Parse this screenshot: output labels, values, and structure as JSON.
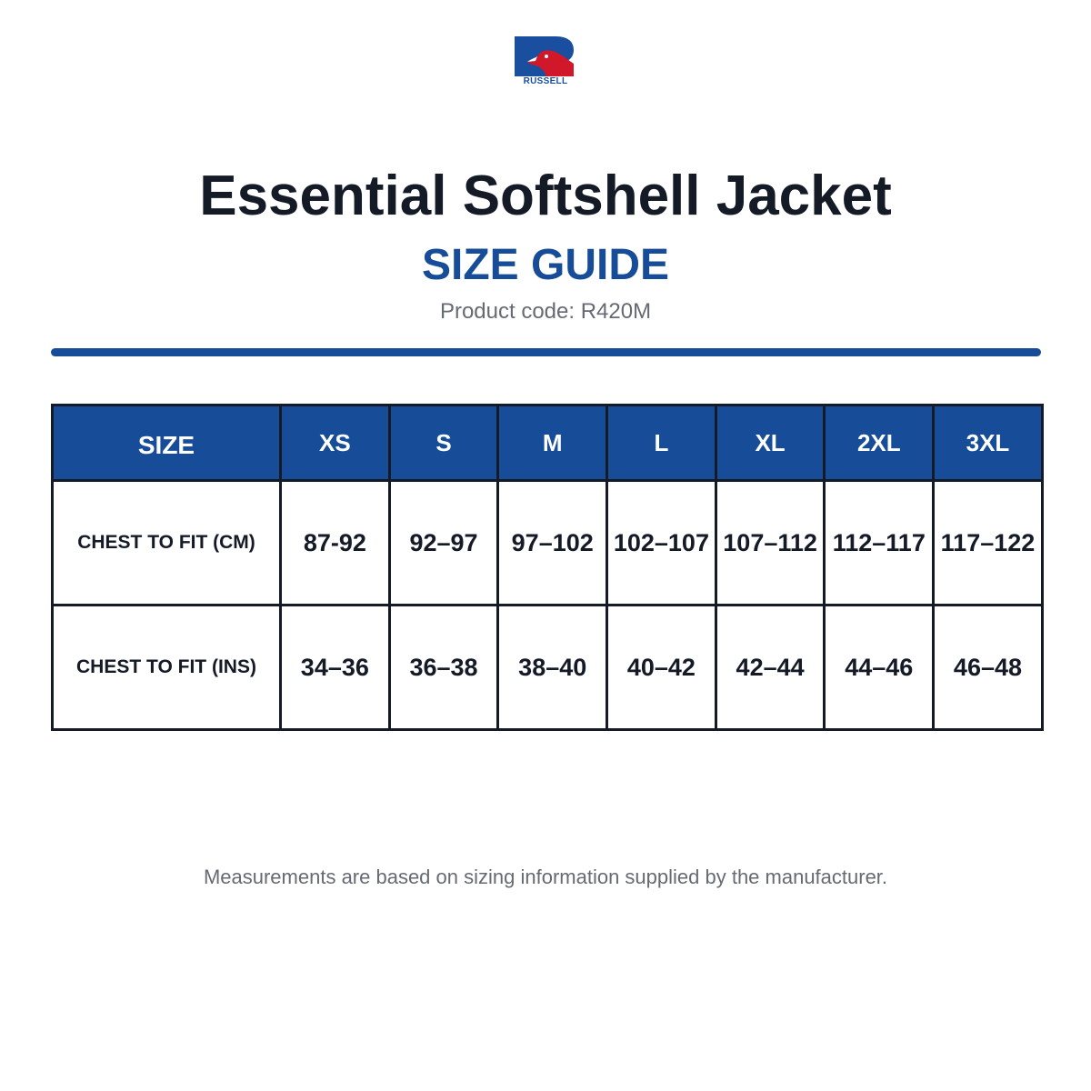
{
  "logo": {
    "text": "RUSSELL",
    "icon": "russell-eagle-r-logo",
    "blue": "#1a4fa0",
    "red": "#d0182a"
  },
  "title": "Essential Softshell Jacket",
  "subtitle": "SIZE GUIDE",
  "product_code": "Product code: R420M",
  "colors": {
    "accent": "#164c98",
    "text": "#141a26",
    "muted": "#666a72"
  },
  "table": {
    "header_label": "SIZE",
    "sizes": [
      "XS",
      "S",
      "M",
      "L",
      "XL",
      "2XL",
      "3XL"
    ],
    "rows": [
      {
        "label": "CHEST TO FIT (CM)",
        "values": [
          "87-92",
          "92–97",
          "97–102",
          "102–107",
          "107–112",
          "112–117",
          "117–122"
        ]
      },
      {
        "label": "CHEST TO FIT (INS)",
        "values": [
          "34–36",
          "36–38",
          "38–40",
          "40–42",
          "42–44",
          "44–46",
          "46–48"
        ]
      }
    ]
  },
  "footnote": "Measurements are based on sizing information supplied by the manufacturer."
}
